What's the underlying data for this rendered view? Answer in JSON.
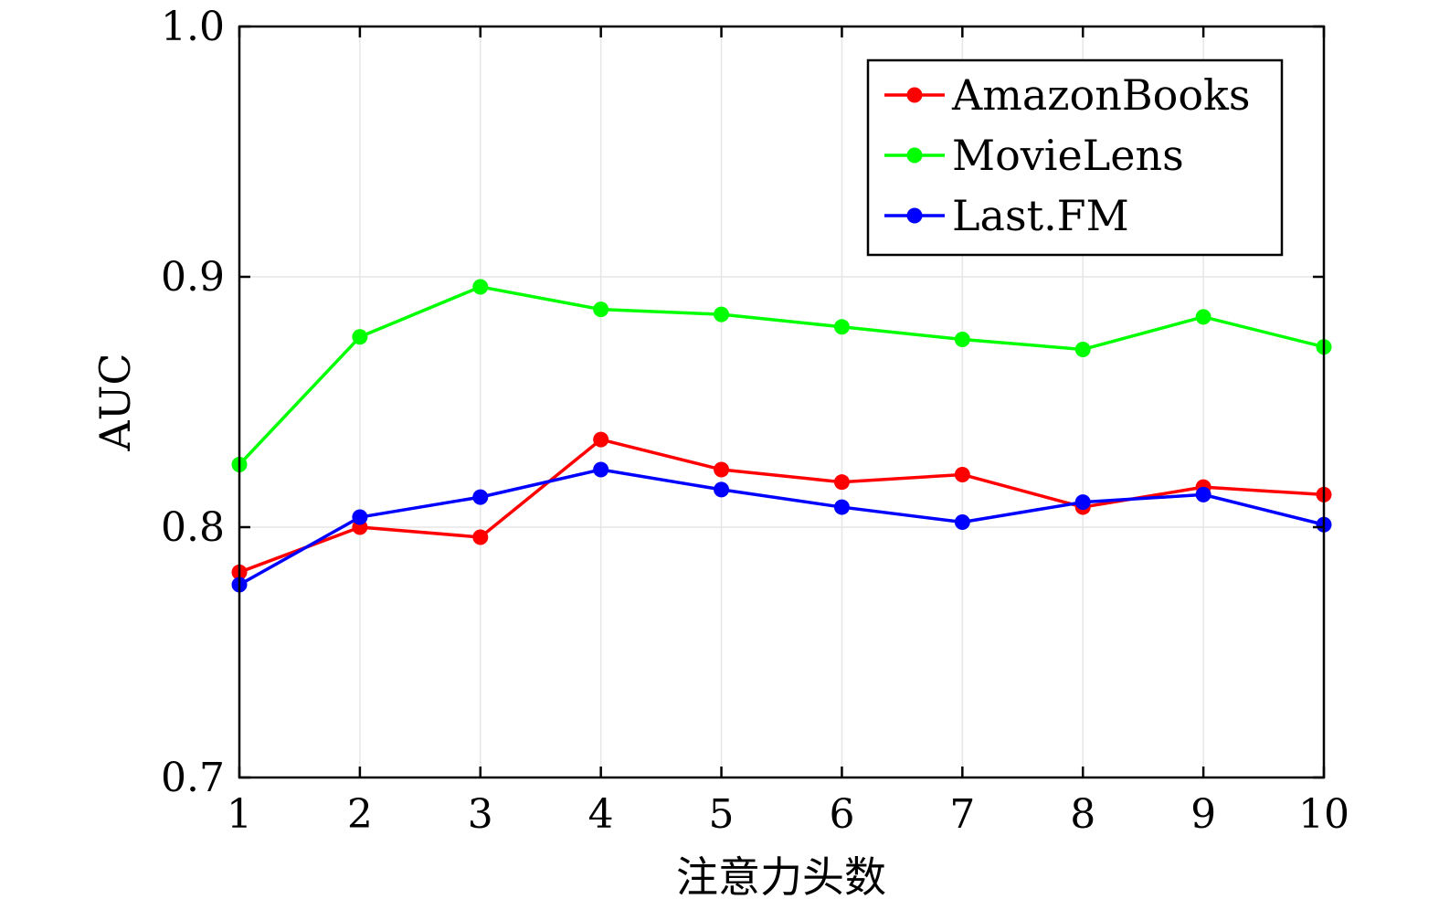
{
  "chart_data": {
    "type": "line",
    "xlabel": "注意力头数",
    "ylabel": "AUC",
    "x": [
      1,
      2,
      3,
      4,
      5,
      6,
      7,
      8,
      9,
      10
    ],
    "xlim": [
      1,
      10
    ],
    "ylim": [
      0.7,
      1.0
    ],
    "x_ticks": [
      "1",
      "2",
      "3",
      "4",
      "5",
      "6",
      "7",
      "8",
      "9",
      "10"
    ],
    "y_ticks": [
      "0.7",
      "0.8",
      "0.9",
      "1.0"
    ],
    "grid": true,
    "legend_position": "top-right",
    "series": [
      {
        "name": "AmazonBooks",
        "color": "#ff0000",
        "values": [
          0.782,
          0.8,
          0.796,
          0.835,
          0.823,
          0.818,
          0.821,
          0.808,
          0.816,
          0.813
        ]
      },
      {
        "name": "MovieLens",
        "color": "#00ff00",
        "values": [
          0.825,
          0.876,
          0.896,
          0.887,
          0.885,
          0.88,
          0.875,
          0.871,
          0.884,
          0.872
        ]
      },
      {
        "name": "Last.FM",
        "color": "#0000ff",
        "values": [
          0.777,
          0.804,
          0.812,
          0.823,
          0.815,
          0.808,
          0.802,
          0.81,
          0.813,
          0.801
        ]
      }
    ]
  }
}
